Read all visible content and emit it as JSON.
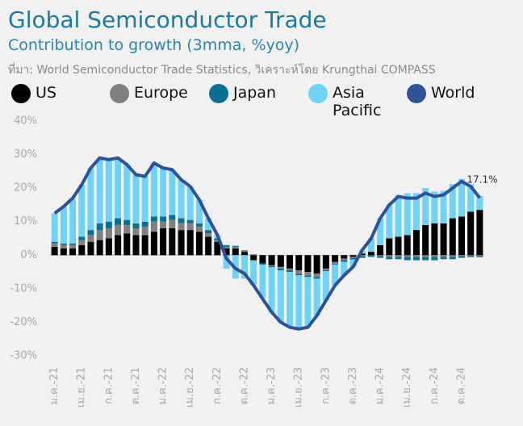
{
  "chart_data": {
    "type": "stacked_bar_line",
    "title": "Global Semiconductor Trade",
    "subtitle": "Contribution to growth (3mma, %yoy)",
    "source": "ที่มา: World Semiconductor Trade Statistics, วิเคราะห์โดย Krungthai COMPASS",
    "categories": [
      "ม.ค.-21",
      null,
      null,
      "เม.ย.-21",
      null,
      null,
      "ก.ค.-21",
      null,
      null,
      "ต.ค.-21",
      null,
      null,
      "ม.ค.-22",
      null,
      null,
      "เม.ย.-22",
      null,
      null,
      "ก.ค.-22",
      null,
      null,
      "ต.ค.-22",
      null,
      null,
      "ม.ค.-23",
      null,
      null,
      "เม.ย.-23",
      null,
      null,
      "ก.ค.-23",
      null,
      null,
      "ต.ค.-23",
      null,
      null,
      "ม.ค.-24",
      null,
      null,
      "เม.ย.-24",
      null,
      null,
      "ก.ค.-24",
      null,
      null,
      "ต.ค.-24",
      null,
      null
    ],
    "series": [
      {
        "name": "US",
        "color": "#000000",
        "kind": "bar",
        "values": [
          2.5,
          2,
          2,
          3,
          4,
          4.5,
          5,
          6,
          6.5,
          6,
          6,
          7,
          8,
          8,
          7.5,
          7.5,
          7,
          5.5,
          4,
          2,
          2,
          1,
          -1.5,
          -2.5,
          -3,
          -3.5,
          -4,
          -4.5,
          -5,
          -5.5,
          -4,
          -2,
          -1,
          -0.5,
          0.5,
          1,
          3,
          5,
          5.5,
          6,
          7.5,
          9,
          9.5,
          9.5,
          11,
          11.5,
          13,
          13.5
        ]
      },
      {
        "name": "Europe",
        "color": "#808080",
        "kind": "bar",
        "values": [
          1,
          1,
          1,
          1.5,
          2,
          3,
          3,
          3,
          2.5,
          2,
          2.5,
          3,
          2,
          2.5,
          2,
          2,
          1.5,
          1,
          0.5,
          0.5,
          0.5,
          0.5,
          0.3,
          0,
          -0.3,
          -0.5,
          -0.5,
          -1,
          -1,
          -1,
          -0.5,
          -0.5,
          -0.5,
          -0.3,
          -0.3,
          0,
          -0.3,
          -0.5,
          -0.5,
          -0.5,
          -0.5,
          -0.5,
          -0.5,
          -0.5,
          -0.5,
          -0.3,
          -0.3,
          -0.3
        ]
      },
      {
        "name": "Japan",
        "color": "#0b6f91",
        "kind": "bar",
        "values": [
          0.5,
          0.5,
          0.5,
          1,
          1.5,
          2,
          2,
          2,
          1.5,
          1.5,
          1.5,
          1.5,
          1.5,
          1.5,
          1.5,
          1,
          1,
          1,
          0.5,
          0.5,
          0.3,
          0,
          0,
          -0.3,
          -0.3,
          -0.5,
          -0.5,
          -0.5,
          -0.5,
          -0.5,
          -0.3,
          -0.3,
          -0.5,
          -0.5,
          -0.5,
          -0.5,
          -0.5,
          -0.7,
          -0.7,
          -1,
          -1,
          -1,
          -1,
          -0.7,
          -0.7,
          -0.5,
          -0.3,
          -0.3
        ]
      },
      {
        "name": "Asia Pacific",
        "color": "#6fd3f7",
        "kind": "bar",
        "values": [
          8.5,
          11,
          13.5,
          15.5,
          18.5,
          19.5,
          18.5,
          18,
          16.5,
          14.5,
          13.5,
          16,
          14.5,
          13.5,
          11.5,
          10,
          7,
          3.5,
          1,
          -4,
          -7,
          -7,
          -7.5,
          -10,
          -13.5,
          -15.5,
          -16.5,
          -16,
          -15,
          -11,
          -8.7,
          -6.2,
          -4,
          -2.2,
          0.8,
          4,
          8,
          10,
          12.5,
          12.5,
          11,
          11,
          9.5,
          9.7,
          10.2,
          11.3,
          8.1,
          4.2
        ]
      },
      {
        "name": "World",
        "color": "#2f5297",
        "kind": "line",
        "values": [
          12.5,
          14.5,
          17,
          21,
          26,
          29,
          28.5,
          29,
          27,
          24,
          23.5,
          27.5,
          26,
          25.5,
          22.5,
          20.5,
          16.5,
          11,
          6,
          -1,
          -4,
          -5.5,
          -9,
          -13,
          -17,
          -20,
          -21.5,
          -22,
          -21.5,
          -18,
          -13.5,
          -9,
          -6,
          -3.5,
          1.5,
          5,
          11,
          15,
          17.5,
          17,
          17,
          18.5,
          17.5,
          18,
          20,
          22,
          20.5,
          17.1
        ]
      }
    ],
    "annotation": "17.1%",
    "ylim": [
      -30,
      40
    ],
    "yticks": [
      {
        "value": -30,
        "label": "-30%"
      },
      {
        "value": -20,
        "label": "-20%"
      },
      {
        "value": -10,
        "label": "-10%"
      },
      {
        "value": 0,
        "label": "0%"
      },
      {
        "value": 10,
        "label": "10%"
      },
      {
        "value": 20,
        "label": "20%"
      },
      {
        "value": 30,
        "label": "30%"
      },
      {
        "value": 40,
        "label": "40%"
      }
    ],
    "grid": false
  }
}
